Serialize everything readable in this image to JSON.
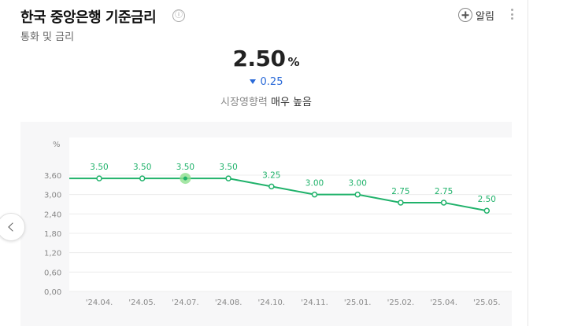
{
  "header": {
    "title": "한국 중앙은행 기준금리",
    "info_icon": "ⓘ",
    "subtitle": "통화 및 금리",
    "alarm_label": "알림"
  },
  "summary": {
    "value": "2.50",
    "unit": "%",
    "change": "0.25",
    "change_direction": "down",
    "impact_label": "시장영향력",
    "impact_value": "매우 높음"
  },
  "colors": {
    "accent": "#20b26b",
    "down": "#2a6ad8",
    "chart_bg": "#f7f7f8",
    "highlight": "#8ee08e"
  },
  "chart_data": {
    "type": "line",
    "yunit": "%",
    "x": [
      "'24.04.",
      "'24.05.",
      "'24.07.",
      "'24.08.",
      "'24.10.",
      "'24.11.",
      "'25.01.",
      "'25.02.",
      "'25.04.",
      "'25.05."
    ],
    "series": [
      {
        "values": [
          3.5,
          3.5,
          3.5,
          3.5,
          3.25,
          3.0,
          3.0,
          2.75,
          2.75,
          2.5
        ]
      }
    ],
    "data_labels": [
      "3.50",
      "3.50",
      "3.50",
      "3.50",
      "3.25",
      "3.00",
      "3.00",
      "2.75",
      "2.75",
      "2.50"
    ],
    "yticks": [
      "0,00",
      "0,60",
      "1,20",
      "1,80",
      "2,40",
      "3,00",
      "3,60"
    ],
    "ytick_values": [
      0,
      0.6,
      1.2,
      1.8,
      2.4,
      3.0,
      3.6
    ],
    "ylim": [
      0,
      3.6
    ],
    "grid": true,
    "highlighted_index": 2
  }
}
